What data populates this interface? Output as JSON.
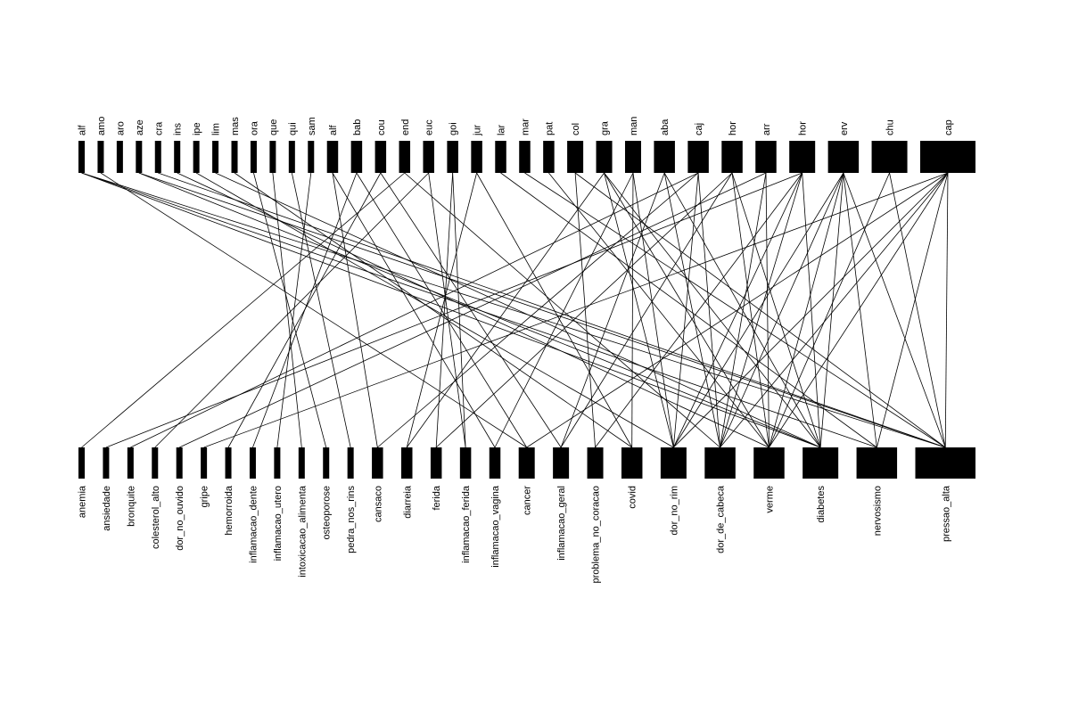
{
  "diagram": {
    "type": "bipartite-network",
    "colors": {
      "node": "#000000",
      "edge": "#000000",
      "background": "#ffffff"
    },
    "top_nodes": [
      {
        "id": "t0",
        "label": "alf",
        "weight": 1
      },
      {
        "id": "t1",
        "label": "amo",
        "weight": 1
      },
      {
        "id": "t2",
        "label": "aro",
        "weight": 1
      },
      {
        "id": "t3",
        "label": "aze",
        "weight": 1
      },
      {
        "id": "t4",
        "label": "cra",
        "weight": 1
      },
      {
        "id": "t5",
        "label": "ins",
        "weight": 1
      },
      {
        "id": "t6",
        "label": "ipe",
        "weight": 1
      },
      {
        "id": "t7",
        "label": "lim",
        "weight": 1
      },
      {
        "id": "t8",
        "label": "mas",
        "weight": 1
      },
      {
        "id": "t9",
        "label": "ora",
        "weight": 1
      },
      {
        "id": "t10",
        "label": "que",
        "weight": 1
      },
      {
        "id": "t11",
        "label": "qui",
        "weight": 1
      },
      {
        "id": "t12",
        "label": "sam",
        "weight": 1
      },
      {
        "id": "t13",
        "label": "alf",
        "weight": 2
      },
      {
        "id": "t14",
        "label": "bab",
        "weight": 2
      },
      {
        "id": "t15",
        "label": "cou",
        "weight": 2
      },
      {
        "id": "t16",
        "label": "end",
        "weight": 2
      },
      {
        "id": "t17",
        "label": "euc",
        "weight": 2
      },
      {
        "id": "t18",
        "label": "goi",
        "weight": 2
      },
      {
        "id": "t19",
        "label": "jur",
        "weight": 2
      },
      {
        "id": "t20",
        "label": "lar",
        "weight": 2
      },
      {
        "id": "t21",
        "label": "mar",
        "weight": 2
      },
      {
        "id": "t22",
        "label": "pat",
        "weight": 2
      },
      {
        "id": "t23",
        "label": "col",
        "weight": 3
      },
      {
        "id": "t24",
        "label": "gra",
        "weight": 3
      },
      {
        "id": "t25",
        "label": "man",
        "weight": 3
      },
      {
        "id": "t26",
        "label": "aba",
        "weight": 4
      },
      {
        "id": "t27",
        "label": "caj",
        "weight": 4
      },
      {
        "id": "t28",
        "label": "hor",
        "weight": 4
      },
      {
        "id": "t29",
        "label": "arr",
        "weight": 4
      },
      {
        "id": "t30",
        "label": "hor",
        "weight": 5
      },
      {
        "id": "t31",
        "label": "erv",
        "weight": 6
      },
      {
        "id": "t32",
        "label": "chu",
        "weight": 7
      },
      {
        "id": "t33",
        "label": "cap",
        "weight": 11
      }
    ],
    "bottom_nodes": [
      {
        "id": "b0",
        "label": "anemia",
        "weight": 1
      },
      {
        "id": "b1",
        "label": "ansiedade",
        "weight": 1
      },
      {
        "id": "b2",
        "label": "bronquite",
        "weight": 1
      },
      {
        "id": "b3",
        "label": "colesterol_alto",
        "weight": 1
      },
      {
        "id": "b4",
        "label": "dor_no_ouvido",
        "weight": 1
      },
      {
        "id": "b5",
        "label": "gripe",
        "weight": 1
      },
      {
        "id": "b6",
        "label": "hemorroida",
        "weight": 1
      },
      {
        "id": "b7",
        "label": "inflamacao_dente",
        "weight": 1
      },
      {
        "id": "b8",
        "label": "inflamacao_utero",
        "weight": 1
      },
      {
        "id": "b9",
        "label": "intoxicacao_alimenta",
        "weight": 1
      },
      {
        "id": "b10",
        "label": "osteoporose",
        "weight": 1
      },
      {
        "id": "b11",
        "label": "pedra_nos_rins",
        "weight": 1
      },
      {
        "id": "b12",
        "label": "cansaco",
        "weight": 2
      },
      {
        "id": "b13",
        "label": "diarreia",
        "weight": 2
      },
      {
        "id": "b14",
        "label": "ferida",
        "weight": 2
      },
      {
        "id": "b15",
        "label": "inflamacao_ferida",
        "weight": 2
      },
      {
        "id": "b16",
        "label": "inflamacao_vagina",
        "weight": 2
      },
      {
        "id": "b17",
        "label": "cancer",
        "weight": 3
      },
      {
        "id": "b18",
        "label": "inflamacao_geral",
        "weight": 3
      },
      {
        "id": "b19",
        "label": "problema_no_coracao",
        "weight": 3
      },
      {
        "id": "b20",
        "label": "covid",
        "weight": 4
      },
      {
        "id": "b21",
        "label": "dor_no_rim",
        "weight": 5
      },
      {
        "id": "b22",
        "label": "dor_de_cabeca",
        "weight": 6
      },
      {
        "id": "b23",
        "label": "verme",
        "weight": 6
      },
      {
        "id": "b24",
        "label": "diabetes",
        "weight": 7
      },
      {
        "id": "b25",
        "label": "nervosismo",
        "weight": 8
      },
      {
        "id": "b26",
        "label": "pressao_alta",
        "weight": 12
      }
    ],
    "edges": [
      [
        "t0",
        "b24"
      ],
      [
        "t0",
        "b26"
      ],
      [
        "t0",
        "b25"
      ],
      [
        "t1",
        "b17"
      ],
      [
        "t3",
        "b26"
      ],
      [
        "t3",
        "b24"
      ],
      [
        "t4",
        "b26"
      ],
      [
        "t5",
        "b23"
      ],
      [
        "t6",
        "b21"
      ],
      [
        "t7",
        "b24"
      ],
      [
        "t8",
        "b20"
      ],
      [
        "t9",
        "b10"
      ],
      [
        "t10",
        "b9"
      ],
      [
        "t11",
        "b11"
      ],
      [
        "t12",
        "b8"
      ],
      [
        "t13",
        "b12"
      ],
      [
        "t13",
        "b16"
      ],
      [
        "t14",
        "b17"
      ],
      [
        "t14",
        "b7"
      ],
      [
        "t15",
        "b6"
      ],
      [
        "t15",
        "b18"
      ],
      [
        "t16",
        "b0"
      ],
      [
        "t16",
        "b22"
      ],
      [
        "t17",
        "b15"
      ],
      [
        "t17",
        "b3"
      ],
      [
        "t18",
        "b15"
      ],
      [
        "t18",
        "b14"
      ],
      [
        "t19",
        "b13"
      ],
      [
        "t19",
        "b20"
      ],
      [
        "t20",
        "b25"
      ],
      [
        "t21",
        "b26"
      ],
      [
        "t22",
        "b23"
      ],
      [
        "t23",
        "b19"
      ],
      [
        "t23",
        "b26"
      ],
      [
        "t24",
        "b21"
      ],
      [
        "t24",
        "b23"
      ],
      [
        "t24",
        "b13"
      ],
      [
        "t24",
        "b24"
      ],
      [
        "t25",
        "b20"
      ],
      [
        "t25",
        "b21"
      ],
      [
        "t25",
        "b16"
      ],
      [
        "t26",
        "b18"
      ],
      [
        "t26",
        "b24"
      ],
      [
        "t26",
        "b22"
      ],
      [
        "t27",
        "b12"
      ],
      [
        "t27",
        "b21"
      ],
      [
        "t27",
        "b22"
      ],
      [
        "t27",
        "b2"
      ],
      [
        "t28",
        "b24"
      ],
      [
        "t28",
        "b23"
      ],
      [
        "t28",
        "b18"
      ],
      [
        "t28",
        "b14"
      ],
      [
        "t29",
        "b22"
      ],
      [
        "t29",
        "b23"
      ],
      [
        "t29",
        "b4"
      ],
      [
        "t30",
        "b21"
      ],
      [
        "t30",
        "b24"
      ],
      [
        "t30",
        "b22"
      ],
      [
        "t30",
        "b1"
      ],
      [
        "t30",
        "b19"
      ],
      [
        "t31",
        "b23"
      ],
      [
        "t31",
        "b25"
      ],
      [
        "t31",
        "b26"
      ],
      [
        "t31",
        "b22"
      ],
      [
        "t31",
        "b24"
      ],
      [
        "t31",
        "b21"
      ],
      [
        "t32",
        "b26"
      ],
      [
        "t32",
        "b23"
      ],
      [
        "t33",
        "b26"
      ],
      [
        "t33",
        "b25"
      ],
      [
        "t33",
        "b23"
      ],
      [
        "t33",
        "b22"
      ],
      [
        "t33",
        "b21"
      ],
      [
        "t33",
        "b17"
      ],
      [
        "t33",
        "b5"
      ]
    ]
  }
}
